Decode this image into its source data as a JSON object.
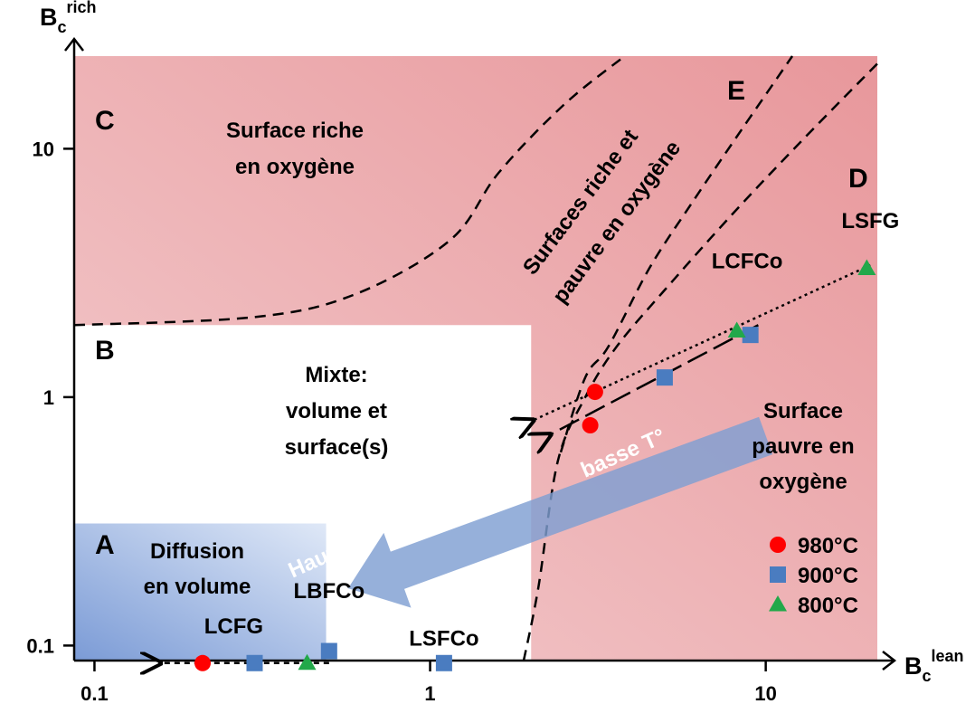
{
  "chart_data": {
    "type": "scatter",
    "title": "",
    "xscale": "log",
    "yscale": "log",
    "xlim": [
      0.087,
      21.5
    ],
    "ylim": [
      0.087,
      23.6
    ],
    "xlabel": {
      "base": "B",
      "sub": "c",
      "sup": "lean"
    },
    "ylabel": {
      "base": "B",
      "sub": "c",
      "sup": "rich"
    },
    "x_ticks": [
      {
        "value": 0.1,
        "label": "0.1"
      },
      {
        "value": 1,
        "label": "1"
      },
      {
        "value": 10,
        "label": "10"
      }
    ],
    "y_ticks": [
      {
        "value": 0.1,
        "label": "0.1"
      },
      {
        "value": 1,
        "label": "1"
      },
      {
        "value": 10,
        "label": "10"
      }
    ],
    "grid": false,
    "legend_position": "bottom-right",
    "colors": {
      "region_red": "#e8979b",
      "region_red_light": "#f3cdcf",
      "region_blue": "#7b9bd6",
      "region_blue_light": "#dfe8f7",
      "arrow_blue": "#7f9fd2",
      "s980": "#ff0000",
      "s900": "#4a7cc0",
      "s800": "#22a84a"
    },
    "regions": [
      {
        "id": "A",
        "letter": "A",
        "lines": [
          "Diffusion",
          "en volume"
        ]
      },
      {
        "id": "B",
        "letter": "B",
        "lines": [
          "Mixte:",
          "volume et",
          "surface(s)"
        ]
      },
      {
        "id": "C",
        "letter": "C",
        "lines": [
          "Surface riche",
          "en oxygène"
        ]
      },
      {
        "id": "D",
        "letter": "D",
        "lines": [
          "Surface",
          "pauvre en",
          "oxygène"
        ]
      },
      {
        "id": "E",
        "letter": "E",
        "lines": [
          "Surfaces riche et",
          "pauvre en oxygène"
        ]
      }
    ],
    "arrow_labels": {
      "high_T": "Haute T°",
      "low_T": "basse T°"
    },
    "series": [
      {
        "name": "980°C",
        "marker": "circle",
        "points": [
          {
            "x": 0.21,
            "y": 0.085
          },
          {
            "x": 3.0,
            "y": 0.77
          },
          {
            "x": 3.1,
            "y": 1.05
          }
        ]
      },
      {
        "name": "900°C",
        "marker": "square",
        "points": [
          {
            "x": 0.3,
            "y": 0.085
          },
          {
            "x": 0.5,
            "y": 0.095
          },
          {
            "x": 1.1,
            "y": 0.085
          },
          {
            "x": 5.0,
            "y": 1.2
          },
          {
            "x": 9.0,
            "y": 1.78
          }
        ]
      },
      {
        "name": "800°C",
        "marker": "triangle",
        "points": [
          {
            "x": 0.43,
            "y": 0.085
          },
          {
            "x": 8.2,
            "y": 1.85
          },
          {
            "x": 20.0,
            "y": 3.3
          }
        ]
      }
    ],
    "point_labels": [
      {
        "text": "LCFG",
        "x": 0.26,
        "y": 0.112
      },
      {
        "text": "LBFCo",
        "x": 0.5,
        "y": 0.155
      },
      {
        "text": "LSFCo",
        "x": 1.1,
        "y": 0.1
      },
      {
        "text": "LCFCo",
        "x": 8.8,
        "y": 3.3
      },
      {
        "text": "LSFG",
        "x": 20.5,
        "y": 4.8
      }
    ]
  }
}
